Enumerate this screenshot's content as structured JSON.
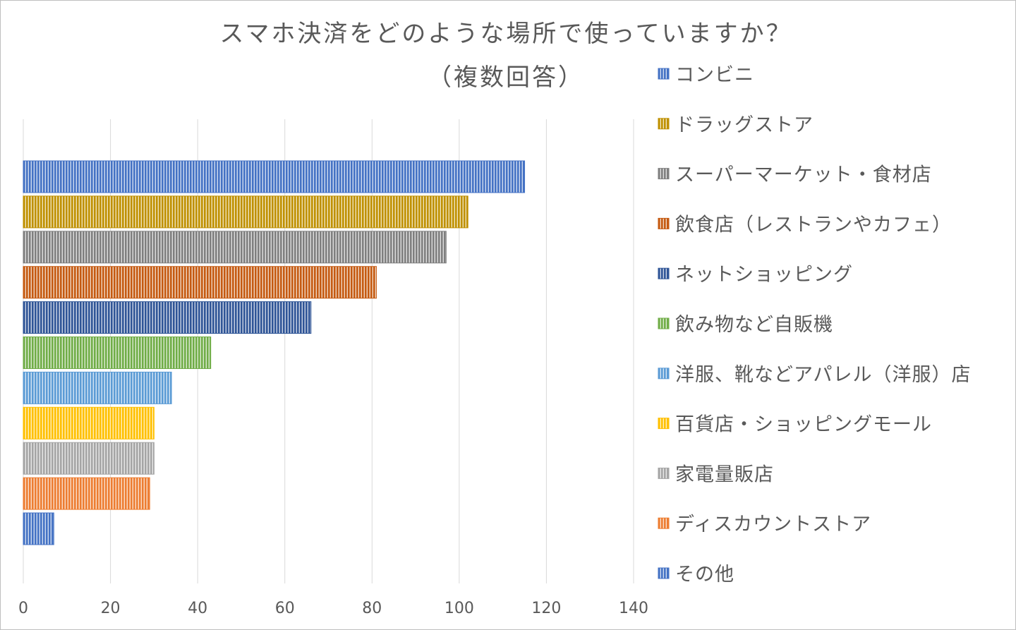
{
  "chart_data": {
    "type": "bar",
    "orientation": "horizontal",
    "title": "スマホ決済をどのような場所で使っていますか？",
    "subtitle": "（複数回答）",
    "xlabel": "",
    "ylabel": "",
    "xlim": [
      0,
      140
    ],
    "x_ticks": [
      "0",
      "20",
      "40",
      "60",
      "80",
      "100",
      "120",
      "140"
    ],
    "grid": "vertical",
    "legend_position": "right",
    "bar_fill_pattern": "vertical-stripes",
    "categories": [
      "コンビニ",
      "ドラッグストア",
      "スーパーマーケット・食材店",
      "飲食店（レストランやカフェ）",
      "ネットショッピング",
      "飲み物など自販機",
      "洋服、靴などアパレル（洋服）店",
      "百貨店・ショッピングモール",
      "家電量販店",
      "ディスカウントストア",
      "その他"
    ],
    "values": [
      115,
      102,
      97,
      81,
      66,
      43,
      34,
      30,
      30,
      29,
      7
    ],
    "colors": [
      "#4472c4",
      "#bf9000",
      "#7f7f7f",
      "#c55a11",
      "#2f5597",
      "#70ad47",
      "#5b9bd5",
      "#ffc000",
      "#a5a5a5",
      "#ed7d31",
      "#4472c4"
    ]
  }
}
